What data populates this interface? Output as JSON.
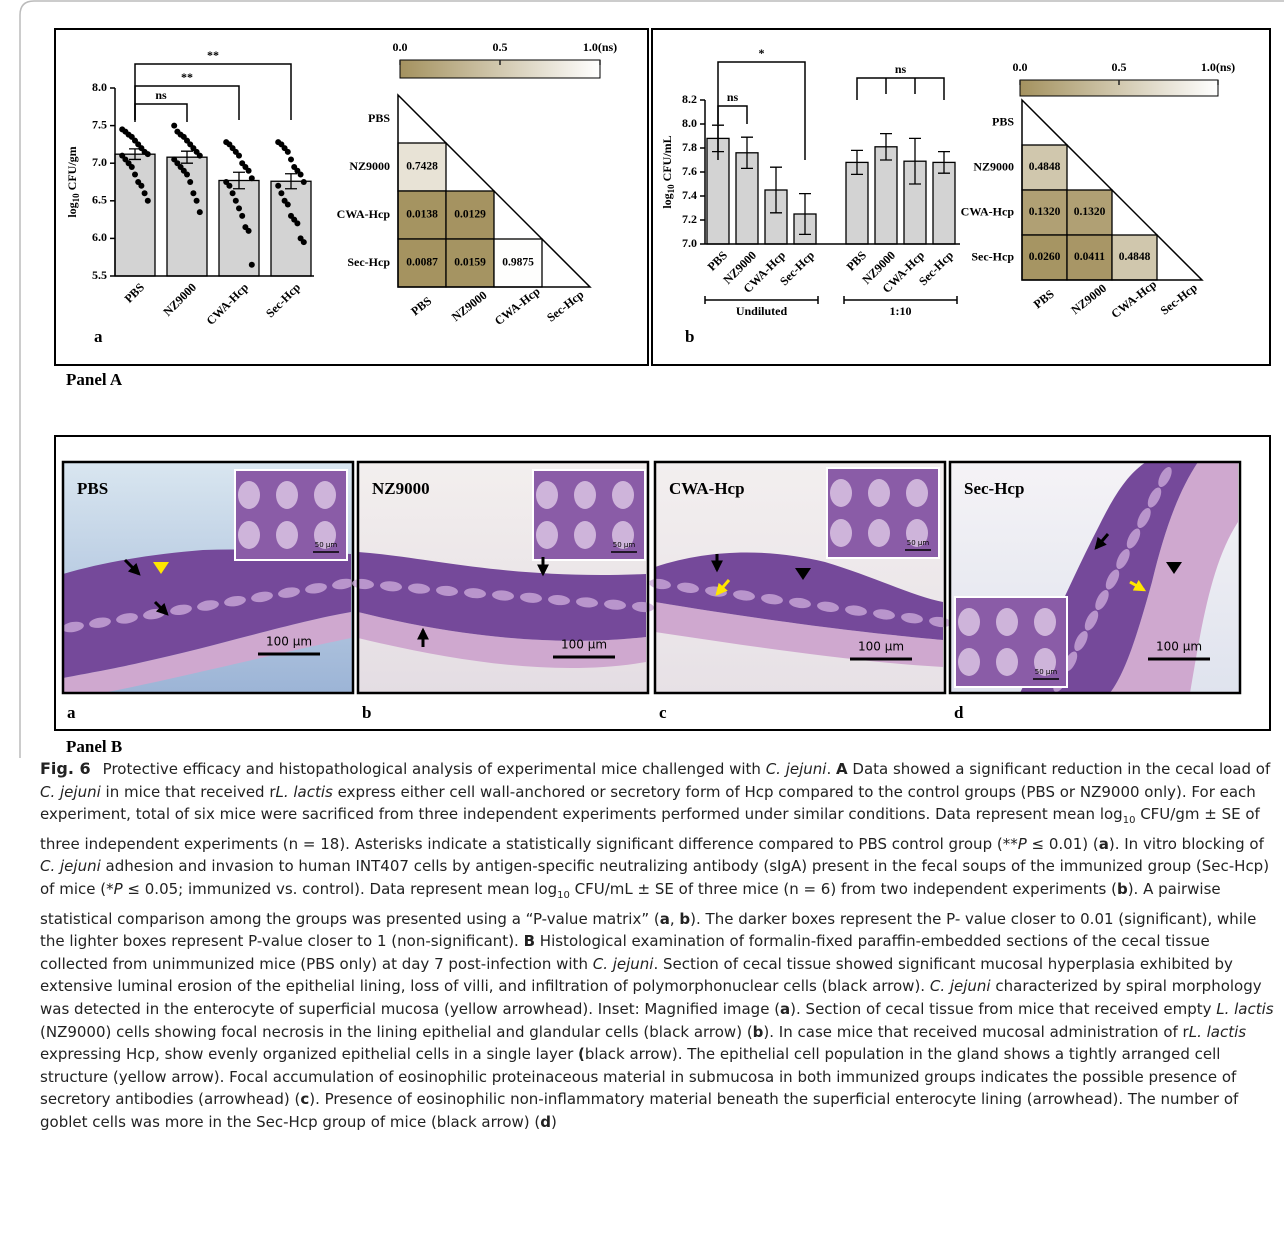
{
  "chart_data": [
    {
      "type": "bar",
      "panel_label": "a",
      "ylabel": [
        "log",
        "10",
        " CFU/gm"
      ],
      "categories": [
        "PBS",
        "NZ9000",
        "CWA-Hcp",
        "Sec-Hcp"
      ],
      "values": [
        7.12,
        7.08,
        6.77,
        6.76
      ],
      "errors": [
        0.07,
        0.08,
        0.11,
        0.1
      ],
      "points": [
        [
          7.45,
          7.42,
          7.38,
          7.35,
          7.3,
          7.25,
          7.2,
          7.15,
          7.12,
          7.1,
          7.05,
          7.0,
          6.95,
          6.85,
          6.75,
          6.7,
          6.6,
          6.5
        ],
        [
          7.5,
          7.42,
          7.38,
          7.35,
          7.3,
          7.25,
          7.2,
          7.15,
          7.1,
          7.05,
          7.0,
          6.95,
          6.9,
          6.85,
          6.75,
          6.6,
          6.5,
          6.35
        ],
        [
          7.28,
          7.25,
          7.2,
          7.15,
          7.1,
          7.0,
          6.95,
          6.9,
          6.8,
          6.75,
          6.7,
          6.6,
          6.5,
          6.4,
          6.3,
          6.15,
          6.1,
          5.65
        ],
        [
          7.28,
          7.25,
          7.2,
          7.15,
          7.05,
          6.95,
          6.9,
          6.85,
          6.75,
          6.7,
          6.6,
          6.5,
          6.45,
          6.3,
          6.25,
          6.2,
          6.0,
          5.95
        ]
      ],
      "color": "#d3d3d3",
      "ylim": [
        5.5,
        8.0
      ],
      "yticks": [
        5.5,
        {
          "value": 6,
          "label": "6.0"
        },
        6.5,
        {
          "value": 7,
          "label": "7.0"
        },
        7.5,
        {
          "value": 8,
          "label": "8.0"
        }
      ],
      "significance": [
        {
          "label": "ns",
          "categories": [
            "PBS",
            "NZ9000"
          ]
        },
        {
          "label": "**",
          "categories": [
            "PBS",
            "CWA-Hcp"
          ]
        },
        {
          "label": "**",
          "categories": [
            "PBS",
            "Sec-Hcp"
          ]
        }
      ]
    },
    {
      "type": "heatmap",
      "rows": [
        "PBS",
        "NZ9000",
        "CWA-Hcp",
        "Sec-Hcp"
      ],
      "columns": [
        "PBS",
        "NZ9000",
        "CWA-Hcp",
        "Sec-Hcp"
      ],
      "values": [
        [
          null,
          null,
          null,
          null
        ],
        [
          0.7428,
          null,
          null,
          null
        ],
        [
          0.0138,
          0.0129,
          null,
          null
        ],
        [
          0.0087,
          0.0159,
          0.9875,
          null
        ]
      ],
      "clim": [
        0,
        1
      ],
      "cticks": [
        {
          "value": 0,
          "label": "0.0"
        },
        0.5,
        {
          "value": 1,
          "label": "1.0(ns)"
        }
      ],
      "colors": [
        "#a4925f",
        "#ffffff"
      ]
    },
    {
      "type": "grouped_bar",
      "panel_label": "b",
      "ylabel": [
        "log",
        "10",
        " CFU/mL"
      ],
      "groups": [
        {
          "name": "Undiluted",
          "categories": [
            "PBS",
            "NZ9000",
            "CWA-Hcp",
            "Sec-Hcp"
          ],
          "values": [
            7.88,
            7.76,
            7.45,
            7.25
          ],
          "errors": [
            0.11,
            0.13,
            0.19,
            0.17
          ]
        },
        {
          "name": "1:10",
          "categories": [
            "PBS",
            "NZ9000",
            "CWA-Hcp",
            "Sec-Hcp"
          ],
          "values": [
            7.68,
            7.81,
            7.69,
            7.68
          ],
          "errors": [
            0.1,
            0.11,
            0.19,
            0.09
          ]
        }
      ],
      "color": "#d3d3d3",
      "ylim": [
        7.0,
        8.2
      ],
      "yticks": [
        {
          "value": 7,
          "label": "7.0"
        },
        7.2,
        7.4,
        7.6,
        7.8,
        {
          "value": 8,
          "label": "8.0"
        },
        8.2
      ],
      "significance": [
        {
          "label": "ns",
          "group": "Undiluted",
          "categories": [
            "PBS",
            "NZ9000"
          ]
        },
        {
          "label": "*",
          "group": "Undiluted",
          "categories": [
            "PBS",
            "Sec-Hcp"
          ]
        },
        {
          "label": "ns",
          "group": "1:10",
          "categories": [
            "PBS",
            "NZ9000",
            "CWA-Hcp",
            "Sec-Hcp"
          ]
        }
      ]
    },
    {
      "type": "heatmap",
      "rows": [
        "PBS",
        "NZ9000",
        "CWA-Hcp",
        "Sec-Hcp"
      ],
      "columns": [
        "PBS",
        "NZ9000",
        "CWA-Hcp",
        "Sec-Hcp"
      ],
      "values": [
        [
          null,
          null,
          null,
          null
        ],
        [
          0.4848,
          null,
          null,
          null
        ],
        [
          0.132,
          0.132,
          null,
          null
        ],
        [
          0.026,
          0.0411,
          0.4848,
          null
        ]
      ],
      "value_labels": [
        [
          null,
          null,
          null,
          null
        ],
        [
          "0.4848",
          null,
          null,
          null
        ],
        [
          "0.1320",
          "0.1320",
          null,
          null
        ],
        [
          "0.0260",
          "0.0411",
          "0.4848",
          null
        ]
      ],
      "clim": [
        0,
        1
      ],
      "cticks": [
        {
          "value": 0,
          "label": "0.0"
        },
        0.5,
        {
          "value": 1,
          "label": "1.0(ns)"
        }
      ],
      "colors": [
        "#a4925f",
        "#ffffff"
      ]
    }
  ],
  "panel_labels": [
    "Panel A",
    "Panel B"
  ],
  "histology": [
    {
      "title": "PBS",
      "scale": "100 µm",
      "inset_scale": "50 µm",
      "label": "a"
    },
    {
      "title": "NZ9000",
      "scale": "100 µm",
      "inset_scale": "50 µm",
      "label": "b"
    },
    {
      "title": "CWA-Hcp",
      "scale": "100 µm",
      "inset_scale": "50 µm",
      "label": "c"
    },
    {
      "title": "Sec-Hcp",
      "scale": "100 µm",
      "inset_scale": "50 µm",
      "label": "d"
    }
  ],
  "caption": {
    "parts": [
      "Fig. 6",
      "Protective efficacy and histopathological analysis of experimental mice challenged with ",
      "C. jejuni",
      ". ",
      "A",
      " Data showed a significant reduction in the cecal load of ",
      "C. jejuni",
      " in mice that received r",
      "L. lactis",
      " express either cell wall-anchored or secretory form of Hcp compared to the control groups (PBS or NZ9000 only). For each experiment, total of six mice were sacrificed from three independent experiments performed under similar conditions. Data represent mean log",
      "10",
      " CFU/gm ± SE of three independent experiments (n = 18). Asterisks indicate a statistically significant difference compared to PBS control group (",
      "**P",
      " ≤ 0.01) (",
      "a",
      "). In vitro blocking of ",
      "C. jejuni",
      " adhesion and invasion to human INT407 cells by antigen-specific neutralizing antibody (sIgA) present in the fecal soups of the immunized group (Sec-Hcp) of mice (",
      "*P",
      " ≤ 0.05; immunized vs. control). Data represent mean log",
      "10",
      " CFU/mL ± SE of three mice (n = 6) from two independent experiments (",
      "b",
      "). A pairwise statistical comparison among the groups was presented using a “P-value matrix” (",
      "a",
      ", ",
      "b",
      "). The darker boxes represent the P- value closer to 0.01 (significant), while the lighter boxes represent P-value closer to 1 (non-significant). ",
      "B",
      " Histological examination of formalin-fixed paraffin-embedded sections of the cecal tissue collected from unimmunized mice (PBS only) at day 7 post-infection with ",
      "C. jejuni",
      ". Section of cecal tissue showed significant mucosal hyperplasia exhibited by extensive luminal erosion of the epithelial lining, loss of villi, and infiltration of polymorphonuclear cells (black arrow). ",
      "C. jejuni",
      " characterized by spiral morphology was detected in the enterocyte of superficial mucosa (yellow arrowhead). Inset: Magnified image (",
      "a",
      "). Section of cecal tissue from mice that received empty ",
      "L. lactis",
      " (NZ9000) cells showing focal necrosis in the lining epithelial and glandular cells (black arrow) (",
      "b",
      "). In case mice that received mucosal administration of r",
      "L. lactis",
      " expressing Hcp, show evenly organized epithelial cells in a single layer ",
      "(",
      "black arrow). The epithelial cell population in the gland shows a tightly arranged cell structure (yellow arrow). Focal accumulation of eosinophilic proteinaceous material in submucosa in both immunized groups indicates the possible presence of secretory antibodies (arrowhead) (",
      "c",
      "). Presence of eosinophilic non-inflammatory material beneath the superficial enterocyte lining (arrowhead). The number of goblet cells was more in the Sec-Hcp group of mice (black arrow) (",
      "d",
      ")"
    ]
  }
}
